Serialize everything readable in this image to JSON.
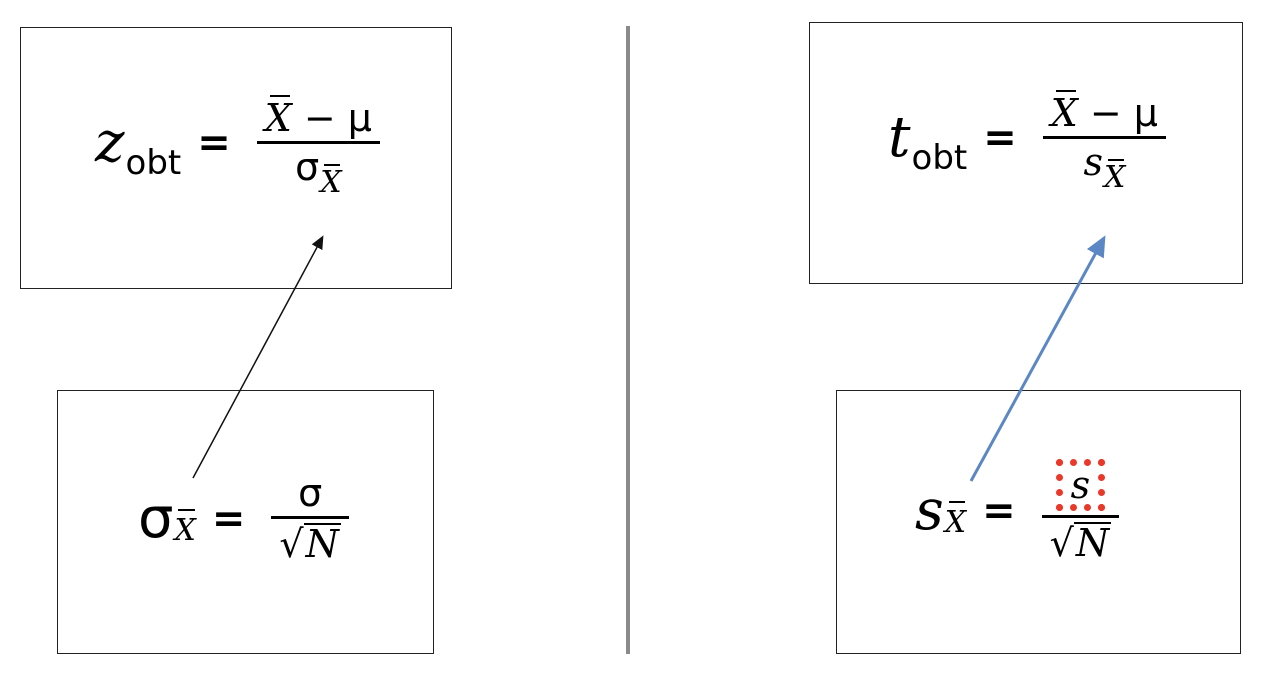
{
  "left": {
    "test_formula": {
      "symbol": "z",
      "subscript": "obt",
      "equals": "=",
      "numerator_x": "X",
      "numerator_rest": " − μ",
      "denominator_symbol": "σ",
      "denominator_sub": "X"
    },
    "se_formula": {
      "symbol": "σ",
      "subscript": "X",
      "equals": "=",
      "numerator": "σ",
      "sqrt_sign": "√",
      "sqrt_arg": "N"
    }
  },
  "right": {
    "test_formula": {
      "symbol": "t",
      "subscript": "obt",
      "equals": "=",
      "numerator_x": "X",
      "numerator_rest": " − μ",
      "denominator_symbol": "s",
      "denominator_sub": "X"
    },
    "se_formula": {
      "symbol": "s",
      "subscript": "X",
      "equals": "=",
      "numerator": "s",
      "sqrt_sign": "√",
      "sqrt_arg": "N"
    }
  },
  "colors": {
    "left_arrow": "#111111",
    "right_arrow": "#5b87c4",
    "highlight": "#e8392a",
    "divider": "#8a8a8a"
  }
}
